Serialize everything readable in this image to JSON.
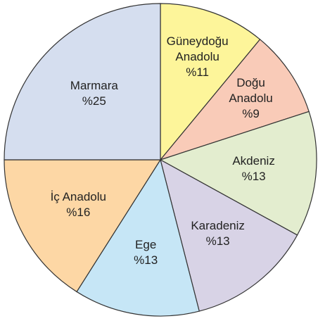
{
  "chart_data": {
    "type": "pie",
    "categories": [
      "Güneydoğu Anadolu",
      "Doğu Anadolu",
      "Akdeniz",
      "Karadeniz",
      "Ege",
      "İç Anadolu",
      "Marmara"
    ],
    "values": [
      11,
      9,
      13,
      13,
      13,
      16,
      25
    ],
    "value_labels": [
      "%11",
      "%9",
      "%13",
      "%13",
      "%13",
      "%16",
      "%25"
    ],
    "colors": [
      "#fdf59a",
      "#f9cbb8",
      "#e3edcf",
      "#d8d3e6",
      "#c6e6f6",
      "#fdd7a5",
      "#d5deef"
    ]
  }
}
